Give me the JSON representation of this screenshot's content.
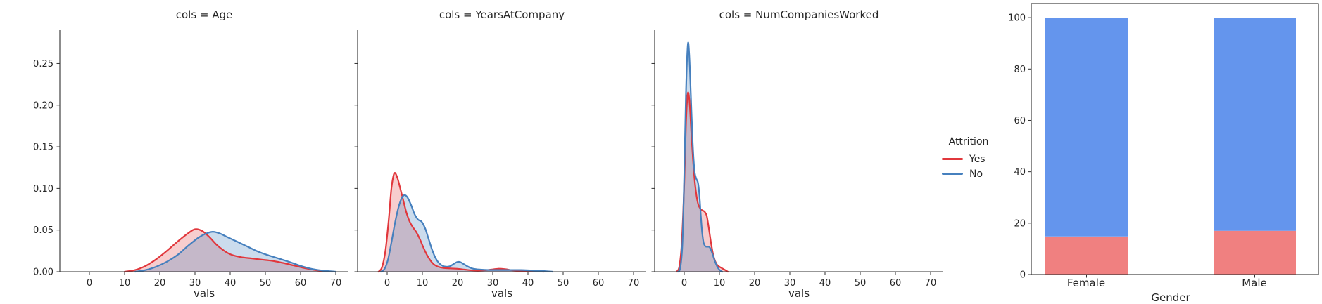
{
  "legend": {
    "title": "Attrition",
    "entries": [
      {
        "label": "Yes",
        "color": "#e1373c"
      },
      {
        "label": "No",
        "color": "#4680be"
      }
    ]
  },
  "style": {
    "axis_color": "#2f2f2f",
    "text_color": "#262626",
    "background": "#ffffff"
  },
  "chart_data": [
    {
      "type": "area",
      "kind": "kde",
      "title": "cols = Age",
      "xlabel": "vals",
      "ylabel": "",
      "xlim": [
        -8.4,
        73.6
      ],
      "ylim": [
        0,
        0.29
      ],
      "x_ticks": [
        0,
        10,
        20,
        30,
        40,
        50,
        60,
        70
      ],
      "y_ticks": [
        0,
        0.05,
        0.1,
        0.15,
        0.2,
        0.25
      ],
      "y_tick_labels_visible": true,
      "grid": false,
      "series": [
        {
          "name": "Yes",
          "color": "#e1373c",
          "fill_opacity": 0.25,
          "points": [
            [
              10,
              0
            ],
            [
              13,
              0.002
            ],
            [
              16,
              0.007
            ],
            [
              19,
              0.015
            ],
            [
              22,
              0.025
            ],
            [
              25,
              0.036
            ],
            [
              28,
              0.046
            ],
            [
              30,
              0.051
            ],
            [
              32,
              0.049
            ],
            [
              34,
              0.042
            ],
            [
              36,
              0.033
            ],
            [
              38,
              0.026
            ],
            [
              40,
              0.021
            ],
            [
              43,
              0.0175
            ],
            [
              46,
              0.016
            ],
            [
              49,
              0.0145
            ],
            [
              52,
              0.013
            ],
            [
              55,
              0.0105
            ],
            [
              58,
              0.0075
            ],
            [
              61,
              0.0045
            ],
            [
              64,
              0.002
            ],
            [
              67,
              0.0005
            ],
            [
              69,
              0
            ]
          ]
        },
        {
          "name": "No",
          "color": "#4680be",
          "fill_opacity": 0.28,
          "points": [
            [
              13,
              0
            ],
            [
              16,
              0.002
            ],
            [
              19,
              0.006
            ],
            [
              22,
              0.012
            ],
            [
              25,
              0.02
            ],
            [
              28,
              0.031
            ],
            [
              31,
              0.041
            ],
            [
              33,
              0.0455
            ],
            [
              35,
              0.048
            ],
            [
              37,
              0.046
            ],
            [
              39,
              0.042
            ],
            [
              42,
              0.036
            ],
            [
              45,
              0.03
            ],
            [
              48,
              0.024
            ],
            [
              51,
              0.0195
            ],
            [
              54,
              0.0155
            ],
            [
              57,
              0.0115
            ],
            [
              60,
              0.007
            ],
            [
              63,
              0.0035
            ],
            [
              66,
              0.0015
            ],
            [
              70,
              0
            ]
          ]
        }
      ]
    },
    {
      "type": "area",
      "kind": "kde",
      "title": "cols = YearsAtCompany",
      "xlabel": "vals",
      "ylabel": "",
      "xlim": [
        -8.4,
        73.6
      ],
      "ylim": [
        0,
        0.29
      ],
      "x_ticks": [
        0,
        10,
        20,
        30,
        40,
        50,
        60,
        70
      ],
      "y_ticks": [
        0,
        0.05,
        0.1,
        0.15,
        0.2,
        0.25
      ],
      "y_tick_labels_visible": false,
      "grid": false,
      "series": [
        {
          "name": "Yes",
          "color": "#e1373c",
          "fill_opacity": 0.25,
          "points": [
            [
              -2.5,
              0
            ],
            [
              -1.5,
              0.005
            ],
            [
              -0.5,
              0.025
            ],
            [
              0.5,
              0.065
            ],
            [
              1.2,
              0.1
            ],
            [
              2,
              0.118
            ],
            [
              2.8,
              0.114
            ],
            [
              3.6,
              0.102
            ],
            [
              4.5,
              0.087
            ],
            [
              5.4,
              0.072
            ],
            [
              6.3,
              0.061
            ],
            [
              7.2,
              0.054
            ],
            [
              8.2,
              0.048
            ],
            [
              9.2,
              0.04
            ],
            [
              10.2,
              0.03
            ],
            [
              11.2,
              0.021
            ],
            [
              12.2,
              0.014
            ],
            [
              13.2,
              0.009
            ],
            [
              14.5,
              0.006
            ],
            [
              16,
              0.0045
            ],
            [
              18,
              0.004
            ],
            [
              20,
              0.0035
            ],
            [
              22,
              0.0025
            ],
            [
              24.5,
              0.0015
            ],
            [
              27,
              0.0015
            ],
            [
              29.5,
              0.0025
            ],
            [
              31.5,
              0.0035
            ],
            [
              33.5,
              0.003
            ],
            [
              36,
              0.0015
            ],
            [
              39,
              0.001
            ],
            [
              42,
              0.0005
            ],
            [
              44.5,
              0
            ]
          ]
        },
        {
          "name": "No",
          "color": "#4680be",
          "fill_opacity": 0.28,
          "points": [
            [
              -1.8,
              0
            ],
            [
              -0.8,
              0.003
            ],
            [
              0.2,
              0.014
            ],
            [
              1.2,
              0.035
            ],
            [
              2.2,
              0.058
            ],
            [
              3.2,
              0.077
            ],
            [
              4.2,
              0.089
            ],
            [
              5,
              0.092
            ],
            [
              5.8,
              0.089
            ],
            [
              6.8,
              0.08
            ],
            [
              7.8,
              0.069
            ],
            [
              8.8,
              0.0625
            ],
            [
              9.8,
              0.06
            ],
            [
              10.8,
              0.052
            ],
            [
              11.8,
              0.039
            ],
            [
              12.8,
              0.026
            ],
            [
              13.8,
              0.016
            ],
            [
              14.8,
              0.01
            ],
            [
              15.8,
              0.007
            ],
            [
              16.8,
              0.006
            ],
            [
              17.8,
              0.0065
            ],
            [
              18.8,
              0.009
            ],
            [
              19.8,
              0.0115
            ],
            [
              20.8,
              0.0115
            ],
            [
              21.8,
              0.009
            ],
            [
              23,
              0.006
            ],
            [
              24.5,
              0.0035
            ],
            [
              26.5,
              0.0025
            ],
            [
              29,
              0.002
            ],
            [
              32,
              0.002
            ],
            [
              35,
              0.002
            ],
            [
              38,
              0.002
            ],
            [
              41,
              0.0015
            ],
            [
              44,
              0.001
            ],
            [
              47,
              0
            ]
          ]
        }
      ]
    },
    {
      "type": "area",
      "kind": "kde",
      "title": "cols = NumCompaniesWorked",
      "xlabel": "vals",
      "ylabel": "",
      "xlim": [
        -8.4,
        73.6
      ],
      "ylim": [
        0,
        0.29
      ],
      "x_ticks": [
        0,
        10,
        20,
        30,
        40,
        50,
        60,
        70
      ],
      "y_ticks": [
        0,
        0.05,
        0.1,
        0.15,
        0.2,
        0.25
      ],
      "y_tick_labels_visible": false,
      "grid": false,
      "series": [
        {
          "name": "Yes",
          "color": "#e1373c",
          "fill_opacity": 0.25,
          "points": [
            [
              -2.2,
              0
            ],
            [
              -1.4,
              0.006
            ],
            [
              -0.7,
              0.035
            ],
            [
              0,
              0.105
            ],
            [
              0.5,
              0.178
            ],
            [
              1,
              0.214
            ],
            [
              1.5,
              0.204
            ],
            [
              2,
              0.168
            ],
            [
              2.5,
              0.134
            ],
            [
              3,
              0.108
            ],
            [
              3.5,
              0.091
            ],
            [
              4,
              0.0805
            ],
            [
              4.6,
              0.0755
            ],
            [
              5.2,
              0.0735
            ],
            [
              5.8,
              0.072
            ],
            [
              6.4,
              0.067
            ],
            [
              7,
              0.052
            ],
            [
              7.6,
              0.035
            ],
            [
              8.2,
              0.021
            ],
            [
              8.8,
              0.0125
            ],
            [
              9.4,
              0.008
            ],
            [
              10,
              0.006
            ],
            [
              10.8,
              0.004
            ],
            [
              11.6,
              0.002
            ],
            [
              12.4,
              0
            ]
          ]
        },
        {
          "name": "No",
          "color": "#4680be",
          "fill_opacity": 0.28,
          "points": [
            [
              -1.8,
              0
            ],
            [
              -1.1,
              0.005
            ],
            [
              -0.5,
              0.035
            ],
            [
              0,
              0.115
            ],
            [
              0.5,
              0.215
            ],
            [
              1,
              0.272
            ],
            [
              1.4,
              0.262
            ],
            [
              1.9,
              0.21
            ],
            [
              2.4,
              0.155
            ],
            [
              2.9,
              0.122
            ],
            [
              3.4,
              0.112
            ],
            [
              3.9,
              0.107
            ],
            [
              4.3,
              0.093
            ],
            [
              4.7,
              0.068
            ],
            [
              5.1,
              0.047
            ],
            [
              5.5,
              0.035
            ],
            [
              6,
              0.0305
            ],
            [
              6.6,
              0.03
            ],
            [
              7.2,
              0.0295
            ],
            [
              7.8,
              0.024
            ],
            [
              8.4,
              0.0165
            ],
            [
              9,
              0.0095
            ],
            [
              9.6,
              0.0045
            ],
            [
              10.2,
              0.0015
            ],
            [
              10.8,
              0
            ]
          ]
        }
      ]
    },
    {
      "type": "bar",
      "stacked": true,
      "title": "",
      "xlabel": "Gender",
      "ylabel": "",
      "categories": [
        "Female",
        "Male"
      ],
      "ylim": [
        0,
        105.5
      ],
      "y_ticks": [
        0,
        20,
        40,
        60,
        80,
        100
      ],
      "grid": false,
      "series": [
        {
          "name": "Yes",
          "color": "#f08080",
          "values": [
            14.8,
            17.0
          ]
        },
        {
          "name": "No",
          "color": "#6495ed",
          "values": [
            85.2,
            83.0
          ]
        }
      ]
    }
  ]
}
